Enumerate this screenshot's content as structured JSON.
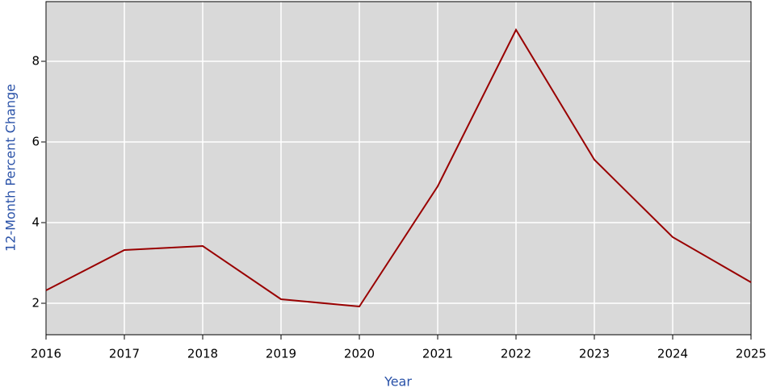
{
  "chart_data": {
    "type": "line",
    "x_label": "Year",
    "y_label": "12-Month Percent Change",
    "x": [
      2016,
      2017,
      2018,
      2019,
      2020,
      2021,
      2022,
      2023,
      2024,
      2025
    ],
    "series": [
      {
        "name": "12-Month Percent Change",
        "color": "#990000",
        "values": [
          2.32,
          3.32,
          3.42,
          2.1,
          1.92,
          4.9,
          8.78,
          5.56,
          3.64,
          2.52
        ]
      }
    ],
    "xlim": [
      2016,
      2025
    ],
    "xticks": [
      2016,
      2017,
      2018,
      2019,
      2020,
      2021,
      2022,
      2023,
      2024,
      2025
    ],
    "ylim": [
      1.22,
      9.48
    ],
    "yticks": [
      2,
      4,
      6,
      8
    ],
    "grid": true
  }
}
